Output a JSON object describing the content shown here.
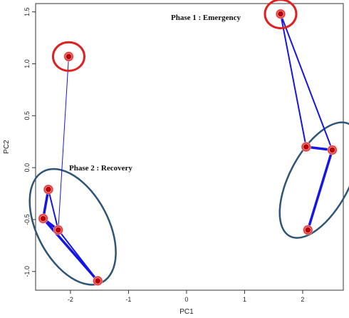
{
  "chart_data": {
    "type": "scatter",
    "title": "",
    "xlabel": "PC1",
    "ylabel": "PC2",
    "xlim": [
      -2.6,
      2.7
    ],
    "ylim": [
      -1.18,
      1.58
    ],
    "x_ticks": [
      -2,
      -1,
      0,
      1,
      2
    ],
    "y_ticks": [
      -1.0,
      -0.5,
      0.0,
      0.5,
      1.0,
      1.5
    ],
    "x_tick_labels": [
      "-2",
      "-1",
      "0",
      "1",
      "2"
    ],
    "y_tick_labels": [
      "-1.0",
      "-0.5",
      "0.0",
      "0.5",
      "1.0",
      "1.5"
    ],
    "grid": false,
    "points": [
      {
        "id": "L1",
        "x": -2.03,
        "y": 1.07
      },
      {
        "id": "L2",
        "x": -2.38,
        "y": -0.21
      },
      {
        "id": "L3",
        "x": -2.47,
        "y": -0.49
      },
      {
        "id": "L4",
        "x": -2.21,
        "y": -0.6
      },
      {
        "id": "L5",
        "x": -1.53,
        "y": -1.09
      },
      {
        "id": "R1",
        "x": 1.62,
        "y": 1.48
      },
      {
        "id": "R2",
        "x": 2.06,
        "y": 0.2
      },
      {
        "id": "R3",
        "x": 2.51,
        "y": 0.17
      },
      {
        "id": "R4",
        "x": 2.09,
        "y": -0.6
      }
    ],
    "edges": [
      {
        "from": "L1",
        "to": "L4",
        "weight": "thin"
      },
      {
        "from": "L2",
        "to": "L3",
        "weight": "thick"
      },
      {
        "from": "L2",
        "to": "L4",
        "weight": "medium"
      },
      {
        "from": "L3",
        "to": "L4",
        "weight": "thick"
      },
      {
        "from": "L3",
        "to": "L5",
        "weight": "thick"
      },
      {
        "from": "L4",
        "to": "L5",
        "weight": "medium"
      },
      {
        "from": "R1",
        "to": "R2",
        "weight": "medium"
      },
      {
        "from": "R1",
        "to": "R3",
        "weight": "medium"
      },
      {
        "from": "R2",
        "to": "R3",
        "weight": "thick"
      },
      {
        "from": "R3",
        "to": "R4",
        "weight": "thick"
      }
    ],
    "highlight_circles": [
      {
        "center": "L1",
        "color": "#e02020"
      },
      {
        "center": "R1",
        "color": "#e02020"
      }
    ],
    "cluster_ellipses": [
      {
        "center_x": -1.96,
        "center_y": -0.57,
        "color": "#2e5478"
      },
      {
        "center_x": 2.29,
        "center_y": -0.12,
        "color": "#2e5478"
      }
    ],
    "annotations": [
      {
        "text": "Phase 1 : Emergency"
      },
      {
        "text": "Phase 2 : Recovery"
      }
    ],
    "colors": {
      "edge": "#1515e6",
      "point_fill": "#b80000",
      "point_ring": "#e23030",
      "point_halo": "#f5a9a9",
      "highlight": "#e02020",
      "ellipse": "#2e5478",
      "axis": "#333333"
    }
  }
}
